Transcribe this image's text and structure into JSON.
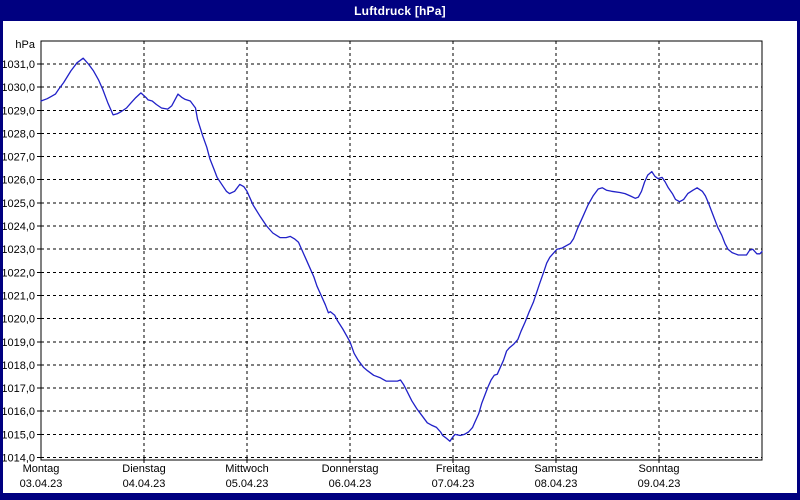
{
  "window": {
    "title": "Luftdruck [hPa]"
  },
  "colors": {
    "titlebar_bg": "#000080",
    "window_border": "#000080",
    "title_text": "#ffffff",
    "chart_bg": "#ffffff",
    "grid": "#000000",
    "axis": "#000000",
    "line": "#2121c8",
    "label_text": "#000000"
  },
  "chart_data": {
    "type": "line",
    "title": "Luftdruck [hPa]",
    "unit_label": "hPa",
    "grid": "dashed",
    "legend": "none",
    "y_axis": {
      "min": 1014.0,
      "max": 1031.0,
      "step": 1.0,
      "tick_labels": [
        "1031,0",
        "1030,0",
        "1029,0",
        "1028,0",
        "1027,0",
        "1026,0",
        "1025,0",
        "1024,0",
        "1023,0",
        "1022,0",
        "1021,0",
        "1020,0",
        "1019,0",
        "1018,0",
        "1017,0",
        "1016,0",
        "1015,0",
        "1014,0"
      ]
    },
    "x_axis": {
      "days": [
        {
          "name": "Montag",
          "date": "03.04.23"
        },
        {
          "name": "Dienstag",
          "date": "04.04.23"
        },
        {
          "name": "Mittwoch",
          "date": "05.04.23"
        },
        {
          "name": "Donnerstag",
          "date": "06.04.23"
        },
        {
          "name": "Freitag",
          "date": "07.04.23"
        },
        {
          "name": "Samstag",
          "date": "08.04.23"
        },
        {
          "name": "Sonntag",
          "date": "09.04.23"
        }
      ],
      "span_days": 7
    },
    "series": [
      {
        "name": "Luftdruck",
        "color": "#2121c8",
        "points": [
          [
            0.0,
            1029.4
          ],
          [
            0.06,
            1029.5
          ],
          [
            0.1,
            1029.6
          ],
          [
            0.14,
            1029.7
          ],
          [
            0.17,
            1029.9
          ],
          [
            0.22,
            1030.2
          ],
          [
            0.29,
            1030.7
          ],
          [
            0.35,
            1031.05
          ],
          [
            0.41,
            1031.25
          ],
          [
            0.46,
            1031.0
          ],
          [
            0.51,
            1030.7
          ],
          [
            0.56,
            1030.3
          ],
          [
            0.6,
            1029.9
          ],
          [
            0.65,
            1029.3
          ],
          [
            0.7,
            1028.8
          ],
          [
            0.74,
            1028.85
          ],
          [
            0.78,
            1028.95
          ],
          [
            0.83,
            1029.1
          ],
          [
            0.87,
            1029.3
          ],
          [
            0.92,
            1029.55
          ],
          [
            0.97,
            1029.75
          ],
          [
            1.02,
            1029.55
          ],
          [
            1.04,
            1029.45
          ],
          [
            1.08,
            1029.4
          ],
          [
            1.12,
            1029.25
          ],
          [
            1.17,
            1029.1
          ],
          [
            1.23,
            1029.05
          ],
          [
            1.27,
            1029.2
          ],
          [
            1.33,
            1029.7
          ],
          [
            1.37,
            1029.55
          ],
          [
            1.4,
            1029.47
          ],
          [
            1.45,
            1029.4
          ],
          [
            1.5,
            1029.1
          ],
          [
            1.52,
            1028.6
          ],
          [
            1.57,
            1027.9
          ],
          [
            1.61,
            1027.4
          ],
          [
            1.64,
            1026.9
          ],
          [
            1.68,
            1026.45
          ],
          [
            1.71,
            1026.1
          ],
          [
            1.77,
            1025.7
          ],
          [
            1.8,
            1025.5
          ],
          [
            1.83,
            1025.4
          ],
          [
            1.88,
            1025.5
          ],
          [
            1.93,
            1025.8
          ],
          [
            1.97,
            1025.7
          ],
          [
            2.0,
            1025.5
          ],
          [
            2.06,
            1024.9
          ],
          [
            2.13,
            1024.4
          ],
          [
            2.19,
            1024.0
          ],
          [
            2.25,
            1023.7
          ],
          [
            2.32,
            1023.5
          ],
          [
            2.38,
            1023.5
          ],
          [
            2.42,
            1023.55
          ],
          [
            2.46,
            1023.45
          ],
          [
            2.5,
            1023.3
          ],
          [
            2.54,
            1022.9
          ],
          [
            2.58,
            1022.5
          ],
          [
            2.61,
            1022.2
          ],
          [
            2.65,
            1021.8
          ],
          [
            2.68,
            1021.4
          ],
          [
            2.72,
            1021.0
          ],
          [
            2.76,
            1020.6
          ],
          [
            2.79,
            1020.25
          ],
          [
            2.81,
            1020.3
          ],
          [
            2.85,
            1020.15
          ],
          [
            2.88,
            1019.9
          ],
          [
            2.93,
            1019.55
          ],
          [
            3.0,
            1019.0
          ],
          [
            3.04,
            1018.5
          ],
          [
            3.08,
            1018.2
          ],
          [
            3.13,
            1017.9
          ],
          [
            3.17,
            1017.75
          ],
          [
            3.23,
            1017.55
          ],
          [
            3.29,
            1017.45
          ],
          [
            3.35,
            1017.3
          ],
          [
            3.41,
            1017.3
          ],
          [
            3.46,
            1017.3
          ],
          [
            3.49,
            1017.35
          ],
          [
            3.52,
            1017.15
          ],
          [
            3.55,
            1016.9
          ],
          [
            3.6,
            1016.45
          ],
          [
            3.65,
            1016.1
          ],
          [
            3.7,
            1015.8
          ],
          [
            3.75,
            1015.5
          ],
          [
            3.79,
            1015.4
          ],
          [
            3.84,
            1015.3
          ],
          [
            3.88,
            1015.1
          ],
          [
            3.9,
            1014.95
          ],
          [
            3.93,
            1014.85
          ],
          [
            3.97,
            1014.7
          ],
          [
            4.0,
            1014.9
          ],
          [
            4.02,
            1015.0
          ],
          [
            4.07,
            1014.95
          ],
          [
            4.11,
            1015.0
          ],
          [
            4.15,
            1015.1
          ],
          [
            4.19,
            1015.3
          ],
          [
            4.21,
            1015.5
          ],
          [
            4.25,
            1015.9
          ],
          [
            4.28,
            1016.35
          ],
          [
            4.31,
            1016.7
          ],
          [
            4.34,
            1017.05
          ],
          [
            4.37,
            1017.35
          ],
          [
            4.4,
            1017.55
          ],
          [
            4.43,
            1017.6
          ],
          [
            4.46,
            1017.9
          ],
          [
            4.49,
            1018.2
          ],
          [
            4.52,
            1018.6
          ],
          [
            4.55,
            1018.75
          ],
          [
            4.59,
            1018.9
          ],
          [
            4.63,
            1019.1
          ],
          [
            4.66,
            1019.45
          ],
          [
            4.7,
            1019.85
          ],
          [
            4.74,
            1020.3
          ],
          [
            4.78,
            1020.7
          ],
          [
            4.81,
            1021.1
          ],
          [
            4.84,
            1021.5
          ],
          [
            4.88,
            1022.0
          ],
          [
            4.91,
            1022.4
          ],
          [
            4.94,
            1022.65
          ],
          [
            4.97,
            1022.8
          ],
          [
            5.01,
            1023.0
          ],
          [
            5.06,
            1023.05
          ],
          [
            5.1,
            1023.15
          ],
          [
            5.14,
            1023.25
          ],
          [
            5.17,
            1023.45
          ],
          [
            5.21,
            1023.9
          ],
          [
            5.26,
            1024.4
          ],
          [
            5.31,
            1024.9
          ],
          [
            5.36,
            1025.3
          ],
          [
            5.41,
            1025.6
          ],
          [
            5.45,
            1025.65
          ],
          [
            5.49,
            1025.55
          ],
          [
            5.54,
            1025.5
          ],
          [
            5.62,
            1025.45
          ],
          [
            5.67,
            1025.4
          ],
          [
            5.72,
            1025.3
          ],
          [
            5.77,
            1025.2
          ],
          [
            5.8,
            1025.25
          ],
          [
            5.83,
            1025.5
          ],
          [
            5.86,
            1025.9
          ],
          [
            5.89,
            1026.2
          ],
          [
            5.93,
            1026.35
          ],
          [
            5.96,
            1026.15
          ],
          [
            5.99,
            1026.05
          ],
          [
            6.03,
            1026.1
          ],
          [
            6.06,
            1025.9
          ],
          [
            6.09,
            1025.65
          ],
          [
            6.13,
            1025.4
          ],
          [
            6.16,
            1025.15
          ],
          [
            6.2,
            1025.05
          ],
          [
            6.24,
            1025.15
          ],
          [
            6.28,
            1025.4
          ],
          [
            6.33,
            1025.55
          ],
          [
            6.37,
            1025.65
          ],
          [
            6.42,
            1025.5
          ],
          [
            6.45,
            1025.3
          ],
          [
            6.48,
            1025.0
          ],
          [
            6.51,
            1024.65
          ],
          [
            6.54,
            1024.3
          ],
          [
            6.57,
            1023.95
          ],
          [
            6.61,
            1023.6
          ],
          [
            6.64,
            1023.25
          ],
          [
            6.67,
            1023.0
          ],
          [
            6.71,
            1022.85
          ],
          [
            6.74,
            1022.8
          ],
          [
            6.77,
            1022.75
          ],
          [
            6.82,
            1022.75
          ],
          [
            6.85,
            1022.75
          ],
          [
            6.88,
            1022.95
          ],
          [
            6.91,
            1023.0
          ],
          [
            6.95,
            1022.8
          ],
          [
            6.98,
            1022.8
          ],
          [
            7.0,
            1022.9
          ]
        ]
      }
    ]
  }
}
